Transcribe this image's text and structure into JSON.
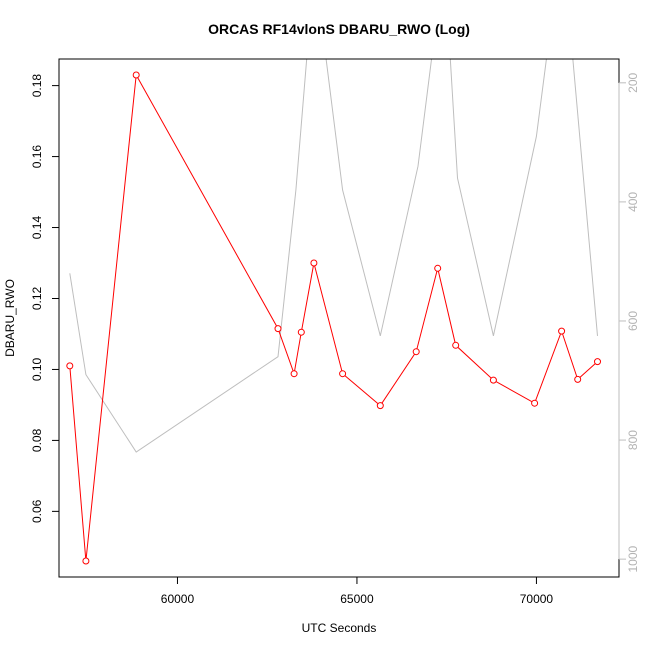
{
  "chart_data": {
    "type": "line",
    "title": "ORCAS RF14vlonS DBARU_RWO (Log)",
    "xlabel": "UTC Seconds",
    "ylabel": "DBARU_RWO",
    "xlim": [
      56700,
      72300
    ],
    "ylim": [
      0.0415,
      0.1875
    ],
    "x_ticks": [
      60000,
      65000,
      70000
    ],
    "y_ticks": [
      0.06,
      0.08,
      0.1,
      0.12,
      0.14,
      0.16,
      0.18
    ],
    "y_tick_labels": [
      "0.06",
      "0.08",
      "0.10",
      "0.12",
      "0.14",
      "0.16",
      "0.18"
    ],
    "y2lim": [
      1030,
      160
    ],
    "y2_ticks": [
      200,
      400,
      600,
      800,
      1000
    ],
    "colors": {
      "primary": "#ff0000",
      "secondary": "#bebebe"
    },
    "series": [
      {
        "values": [
          [
            57000,
            0.101
          ],
          [
            57450,
            0.046
          ],
          [
            58850,
            0.183
          ],
          [
            62800,
            0.1115
          ],
          [
            63250,
            0.0988
          ],
          [
            63450,
            0.1105
          ],
          [
            63800,
            0.13
          ],
          [
            64600,
            0.0988
          ],
          [
            65650,
            0.0898
          ],
          [
            66650,
            0.105
          ],
          [
            67250,
            0.1285
          ],
          [
            67750,
            0.1068
          ],
          [
            68800,
            0.097
          ],
          [
            69950,
            0.0905
          ],
          [
            70700,
            0.1108
          ],
          [
            71150,
            0.0972
          ],
          [
            71700,
            0.1022
          ]
        ],
        "color": "#ff0000",
        "marker": "open-circle"
      },
      {
        "values": [
          [
            57000,
            520
          ],
          [
            57450,
            690
          ],
          [
            58850,
            820
          ],
          [
            62800,
            660
          ],
          [
            63300,
            380
          ],
          [
            63600,
            160
          ],
          [
            64100,
            140
          ],
          [
            64600,
            380
          ],
          [
            65650,
            625
          ],
          [
            66700,
            340
          ],
          [
            67100,
            150
          ],
          [
            67600,
            160
          ],
          [
            67800,
            360
          ],
          [
            68800,
            625
          ],
          [
            70000,
            290
          ],
          [
            70300,
            150
          ],
          [
            71000,
            150
          ],
          [
            71700,
            625
          ]
        ],
        "color": "#bebebe",
        "axis": "right"
      }
    ]
  }
}
